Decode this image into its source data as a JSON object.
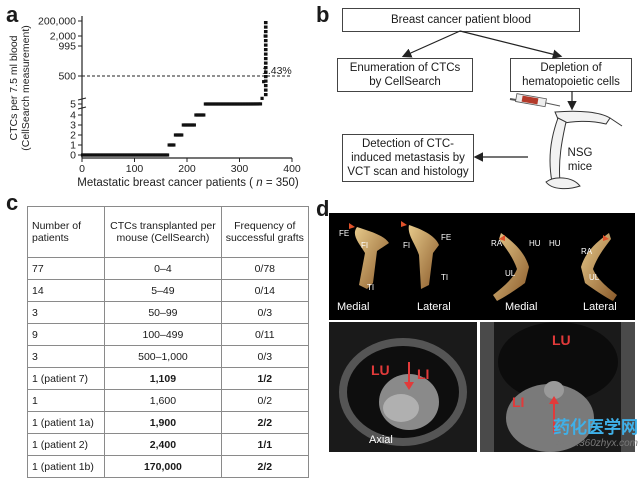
{
  "panels": {
    "a": "a",
    "b": "b",
    "c": "c",
    "d": "d"
  },
  "chart_data": {
    "type": "scatter",
    "xlabel": "Metastatic breast cancer patients (n = 350)",
    "ylabel_line1": "CTCs per 7.5 ml blood",
    "ylabel_line2": "(CellSearch measurement)",
    "xlim": [
      0,
      400
    ],
    "x_ticks": [
      "0",
      "100",
      "200",
      "300",
      "400"
    ],
    "y_ticks": [
      "0",
      "1",
      "2",
      "3",
      "4",
      "5",
      "500",
      "995",
      "2,000",
      "200,000"
    ],
    "threshold_label": "1.43%",
    "threshold_value": 500,
    "series": [
      {
        "points": [
          [
            1,
            0
          ],
          [
            165,
            0
          ],
          [
            166,
            1
          ],
          [
            175,
            1
          ],
          [
            176,
            2
          ],
          [
            192,
            2
          ],
          [
            193,
            3
          ],
          [
            215,
            3
          ],
          [
            216,
            4
          ],
          [
            232,
            4
          ],
          [
            233,
            5
          ],
          [
            300,
            5
          ],
          [
            320,
            5.2
          ],
          [
            336,
            5.8
          ],
          [
            342,
            7
          ],
          [
            345,
            300
          ],
          [
            347,
            500
          ],
          [
            348,
            995
          ],
          [
            349,
            2000
          ],
          [
            350,
            200000
          ]
        ]
      }
    ]
  },
  "flow": {
    "top": "Breast cancer patient blood",
    "left_l1": "Enumeration of CTCs",
    "left_l2": "by CellSearch",
    "right_l1": "Depletion of",
    "right_l2": "hematopoietic cells",
    "bottom_l1": "Detection of CTC-",
    "bottom_l2": "induced metastasis by",
    "bottom_l3": "VCT scan and histology",
    "mice_l1": "NSG",
    "mice_l2": "mice"
  },
  "table": {
    "headers": [
      "Number of patients",
      "CTCs transplanted per mouse (CellSearch)",
      "Frequency of successful grafts"
    ],
    "rows": [
      {
        "n": "77",
        "ctc": "0–4",
        "freq": "0/78",
        "bold": false
      },
      {
        "n": "14",
        "ctc": "5–49",
        "freq": "0/14",
        "bold": false
      },
      {
        "n": "3",
        "ctc": "50–99",
        "freq": "0/3",
        "bold": false
      },
      {
        "n": "9",
        "ctc": "100–499",
        "freq": "0/11",
        "bold": false
      },
      {
        "n": "3",
        "ctc": "500–1,000",
        "freq": "0/3",
        "bold": false
      },
      {
        "n": "1 (patient 7)",
        "ctc": "1,109",
        "freq": "1/2",
        "bold": true
      },
      {
        "n": "1",
        "ctc": "1,600",
        "freq": "0/2",
        "bold": false
      },
      {
        "n": "1 (patient 1a)",
        "ctc": "1,900",
        "freq": "2/2",
        "bold": true
      },
      {
        "n": "1 (patient 2)",
        "ctc": "2,400",
        "freq": "1/1",
        "bold": true
      },
      {
        "n": "1 (patient 1b)",
        "ctc": "170,000",
        "freq": "2/2",
        "bold": true
      }
    ]
  },
  "bones": {
    "fe": "FE",
    "fi": "FI",
    "ti": "TI",
    "ra": "RA",
    "hu": "HU",
    "ul": "UL",
    "medial": "Medial",
    "lateral": "Lateral"
  },
  "ct": {
    "lu": "LU",
    "li": "LI",
    "axial": "Axial"
  },
  "watermark": {
    "line1": "药化医学网",
    "line2": "www.360zhyx.com"
  }
}
